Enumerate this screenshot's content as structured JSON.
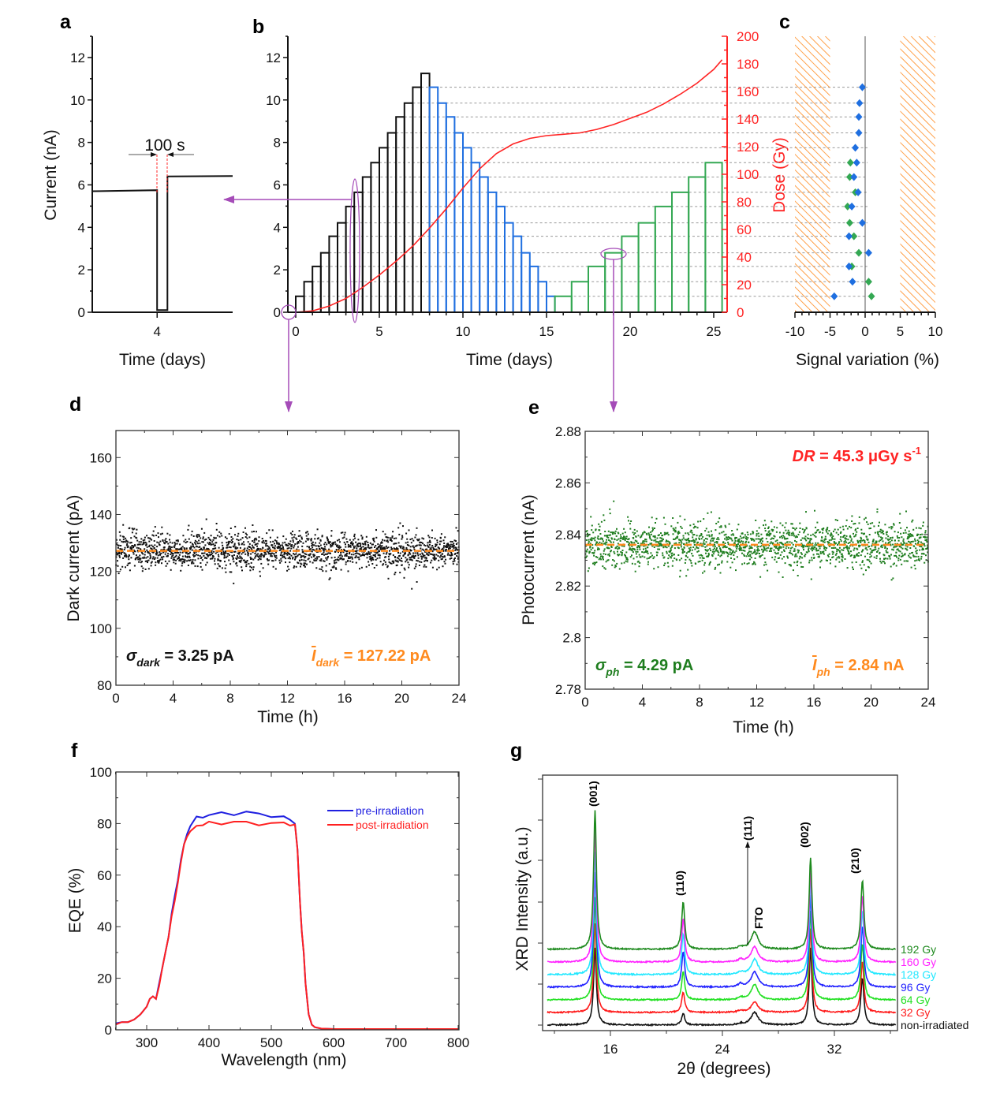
{
  "colors": {
    "black": "#111111",
    "blue": "#1f6fe0",
    "green": "#34a853",
    "red": "#ff2424",
    "orange": "#ff8a1e",
    "purple": "#a54cb8",
    "dark_green": "#1e7d1e"
  },
  "chart_data": [
    {
      "panel": "a",
      "type": "line",
      "xlabel": "Time (days)",
      "ylabel": "Current (nA)",
      "xlim": [
        3.9927,
        4.0085
      ],
      "ylim": [
        0,
        13
      ],
      "xticks": [
        4
      ],
      "yticks": [
        0,
        2,
        4,
        6,
        8,
        10,
        12
      ],
      "annotation": "100 s",
      "series": [
        {
          "x": [
            3.9927,
            4.0,
            4.0,
            4.00116,
            4.00116,
            4.0085
          ],
          "y": [
            5.7,
            5.75,
            0.1,
            0.1,
            6.4,
            6.42
          ]
        }
      ]
    },
    {
      "panel": "b",
      "type": "line",
      "xlabel": "Time (days)",
      "y2label": "Dose (Gy)",
      "xlim": [
        -0.47,
        25.8
      ],
      "ylim": [
        0,
        13
      ],
      "y2lim": [
        0,
        200
      ],
      "xticks": [
        0,
        5,
        10,
        15,
        20,
        25
      ],
      "yticks": [
        0,
        2,
        4,
        6,
        8,
        10,
        12
      ],
      "y2ticks": [
        0,
        20,
        40,
        60,
        80,
        100,
        120,
        140,
        160,
        180,
        200
      ],
      "steps": [
        {
          "color": "black",
          "start": 0,
          "step_days": 0.5,
          "levels": [
            0.75,
            1.44,
            2.16,
            2.8,
            3.58,
            4.21,
            4.98,
            5.65,
            6.37,
            7.05,
            7.75,
            8.45,
            9.2,
            9.85,
            10.6,
            11.25
          ]
        },
        {
          "color": "blue",
          "start": 8,
          "step_days": 0.5,
          "levels": [
            10.6,
            9.85,
            9.2,
            8.45,
            7.75,
            7.05,
            6.37,
            5.65,
            4.98,
            4.21,
            3.58,
            2.8,
            2.16,
            1.44,
            0.75
          ]
        },
        {
          "color": "green",
          "start": 15.5,
          "step_days": 1,
          "levels": [
            0.75,
            1.44,
            2.16,
            2.8,
            3.58,
            4.21,
            4.98,
            5.65,
            6.37,
            7.05
          ]
        }
      ],
      "dose": {
        "x": [
          0,
          1,
          2,
          3,
          4,
          5,
          6,
          7,
          8,
          9,
          10,
          11,
          12,
          13,
          14,
          15,
          16,
          17,
          18,
          19,
          20,
          21,
          22,
          23,
          24,
          25,
          25.5
        ],
        "y": [
          0,
          1,
          4.5,
          10,
          18,
          27,
          37,
          48,
          61,
          75,
          90,
          104,
          115,
          122,
          126,
          128,
          129,
          130,
          132.5,
          136,
          140.5,
          145,
          151,
          158,
          166,
          176,
          183
        ]
      }
    },
    {
      "panel": "c",
      "type": "scatter",
      "xlabel": "Signal variation (%)",
      "xlim": [
        -10,
        10
      ],
      "xticks": [
        -10,
        -5,
        0,
        5,
        10
      ],
      "hatched_ranges": [
        [
          -10,
          -5
        ],
        [
          5,
          10
        ]
      ],
      "levels_nA": [
        10.6,
        9.85,
        9.2,
        8.45,
        7.75,
        7.05,
        6.37,
        5.65,
        4.98,
        4.21,
        3.58,
        2.8,
        2.16,
        1.44,
        0.75
      ],
      "series": [
        {
          "color": "blue",
          "values": [
            -0.4,
            -0.8,
            -0.9,
            -0.9,
            -1.4,
            -1.2,
            -1.6,
            -1.0,
            -1.9,
            -0.4,
            -2.3,
            0.5,
            -2.3,
            -1.8,
            -4.4
          ]
        },
        {
          "color": "green",
          "values": [
            null,
            null,
            null,
            null,
            null,
            -2.1,
            -2.2,
            -1.4,
            -2.5,
            -2.2,
            -1.6,
            -0.9,
            -1.9,
            0.5,
            0.9
          ]
        }
      ]
    },
    {
      "panel": "d",
      "type": "scatter",
      "xlabel": "Time (h)",
      "ylabel": "Dark current (pA)",
      "xlim": [
        0,
        24
      ],
      "ylim": [
        80,
        169.5
      ],
      "xticks": [
        0,
        4,
        8,
        12,
        16,
        20,
        24
      ],
      "yticks": [
        80,
        100,
        120,
        140,
        160
      ],
      "mean": 127.22,
      "sigma": 3.25,
      "sigma_label": {
        "symbol": "σ",
        "sub": "dark",
        "value": " = 3.25 pA"
      },
      "mean_label": {
        "symbol": "I",
        "sub": "dark",
        "value": " = 127.22 pA"
      }
    },
    {
      "panel": "e",
      "type": "scatter",
      "xlabel": "Time (h)",
      "ylabel": "Photocurrent (nA)",
      "xlim": [
        0,
        24
      ],
      "ylim": [
        2.78,
        2.88
      ],
      "xticks": [
        0,
        4,
        8,
        12,
        16,
        20,
        24
      ],
      "yticks": [
        2.78,
        2.8,
        2.82,
        2.84,
        2.86,
        2.88
      ],
      "mean": 2.836,
      "sigma": 0.00429,
      "dose_rate_label": {
        "symbol": "DR",
        "value": " = 45.3 μGy s",
        "sup": "-1"
      },
      "sigma_label": {
        "symbol": "σ",
        "sub": "ph",
        "value": " = 4.29 pA"
      },
      "mean_label": {
        "symbol": "I",
        "sub": "ph",
        "value": " = 2.84 nA"
      }
    },
    {
      "panel": "f",
      "type": "line",
      "xlabel": "Wavelength (nm)",
      "ylabel": "EQE (%)",
      "xlim": [
        250,
        800
      ],
      "ylim": [
        0,
        100
      ],
      "xticks": [
        300,
        400,
        500,
        600,
        700,
        800
      ],
      "yticks": [
        0,
        20,
        40,
        60,
        80,
        100
      ],
      "legend_position": "top-right",
      "x": [
        250,
        260,
        270,
        280,
        290,
        300,
        305,
        310,
        315,
        320,
        325,
        330,
        335,
        340,
        345,
        350,
        355,
        360,
        365,
        370,
        380,
        390,
        400,
        420,
        440,
        460,
        480,
        500,
        520,
        530,
        538,
        542,
        546,
        549,
        552,
        555,
        560,
        565,
        570,
        580,
        600,
        700,
        800
      ],
      "series": [
        {
          "name": "pre-irradiation",
          "color": "blue",
          "values": [
            2.5,
            3,
            3,
            4,
            6,
            9,
            12,
            13,
            12,
            18,
            24,
            30,
            36,
            45,
            52,
            58,
            66,
            72,
            76,
            79,
            82,
            83,
            83,
            84,
            84,
            84,
            84,
            83,
            82,
            82,
            80,
            70,
            50,
            38,
            30,
            18,
            6,
            2,
            1,
            0.5,
            0.3,
            0.3,
            0.3
          ]
        },
        {
          "name": "post-irradiation",
          "color": "red",
          "values": [
            2,
            3,
            3,
            4,
            6,
            9,
            12,
            13,
            12,
            17,
            24,
            30,
            36,
            44,
            50,
            57,
            65,
            72,
            75,
            77,
            79,
            80,
            80,
            80,
            81,
            80,
            80,
            80,
            80,
            80,
            79,
            70,
            50,
            38,
            30,
            18,
            6,
            2,
            1,
            0.5,
            0.3,
            0.3,
            0.3
          ]
        }
      ]
    },
    {
      "panel": "g",
      "type": "line",
      "xlabel": "2θ (degrees)",
      "ylabel": "XRD Intensity (a.u.)",
      "xlim": [
        11.2,
        36.5
      ],
      "ylim": [
        0,
        100
      ],
      "xticks": [
        16,
        24,
        32
      ],
      "peaks": [
        {
          "label": "(001)",
          "position": 14.9
        },
        {
          "label": "(110)",
          "position": 21.2
        },
        {
          "label": "(111)",
          "position": 25.3
        },
        {
          "label": "FTO",
          "position": 26.3
        },
        {
          "label": "(002)",
          "position": 30.3
        },
        {
          "label": "(210)",
          "position": 34.0
        }
      ],
      "series": [
        {
          "name": "non-irradiated",
          "color": "#111111",
          "offset": 2.2,
          "heights": [
            30,
            4.6,
            0.5,
            5,
            30,
            18.5
          ]
        },
        {
          "name": "32 Gy",
          "color": "#ff1a1a",
          "offset": 7.1,
          "heights": [
            35,
            8,
            0.8,
            4,
            33,
            20
          ]
        },
        {
          "name": "64 Gy",
          "color": "#22e022",
          "offset": 12,
          "heights": [
            40,
            11,
            1,
            6,
            35,
            22
          ]
        },
        {
          "name": "96 Gy",
          "color": "#2222ff",
          "offset": 17,
          "heights": [
            45,
            14,
            1.2,
            6,
            36,
            24
          ]
        },
        {
          "name": "128 Gy",
          "color": "#22e8ff",
          "offset": 21.9,
          "heights": [
            48,
            16,
            1,
            6,
            36,
            25
          ]
        },
        {
          "name": "160 Gy",
          "color": "#ff22ff",
          "offset": 26.8,
          "heights": [
            52,
            17,
            1,
            6,
            36,
            26
          ]
        },
        {
          "name": "192 Gy",
          "color": "#1e8a1e",
          "offset": 31.8,
          "heights": [
            54.6,
            18.5,
            1,
            6.8,
            36,
            27
          ]
        }
      ]
    }
  ]
}
